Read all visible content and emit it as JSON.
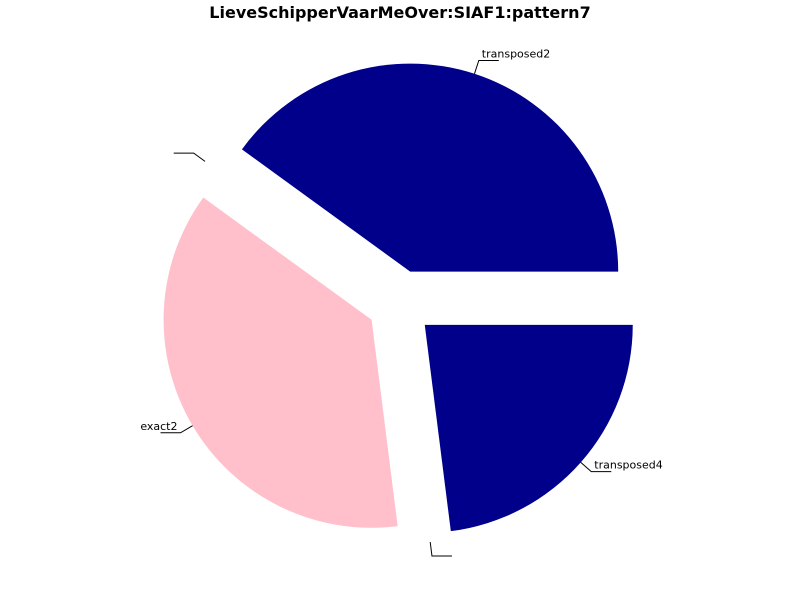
{
  "chart_data": {
    "type": "pie",
    "title": "LieveSchipperVaarMeOver:SIAF1:pattern7",
    "start_angle_deg": 0,
    "direction": "counterclockwise",
    "slices": [
      {
        "label": "transposed2",
        "fraction": 0.4,
        "color": "#00008b",
        "exploded": true
      },
      {
        "label": "",
        "fraction": 0.0,
        "color": "#00008b",
        "exploded": true
      },
      {
        "label": "exact2",
        "fraction": 0.37,
        "color": "#ffc0cb",
        "exploded": true
      },
      {
        "label": "",
        "fraction": 0.0,
        "color": "#00008b",
        "exploded": true
      },
      {
        "label": "transposed4",
        "fraction": 0.23,
        "color": "#00008b",
        "exploded": true
      }
    ]
  }
}
